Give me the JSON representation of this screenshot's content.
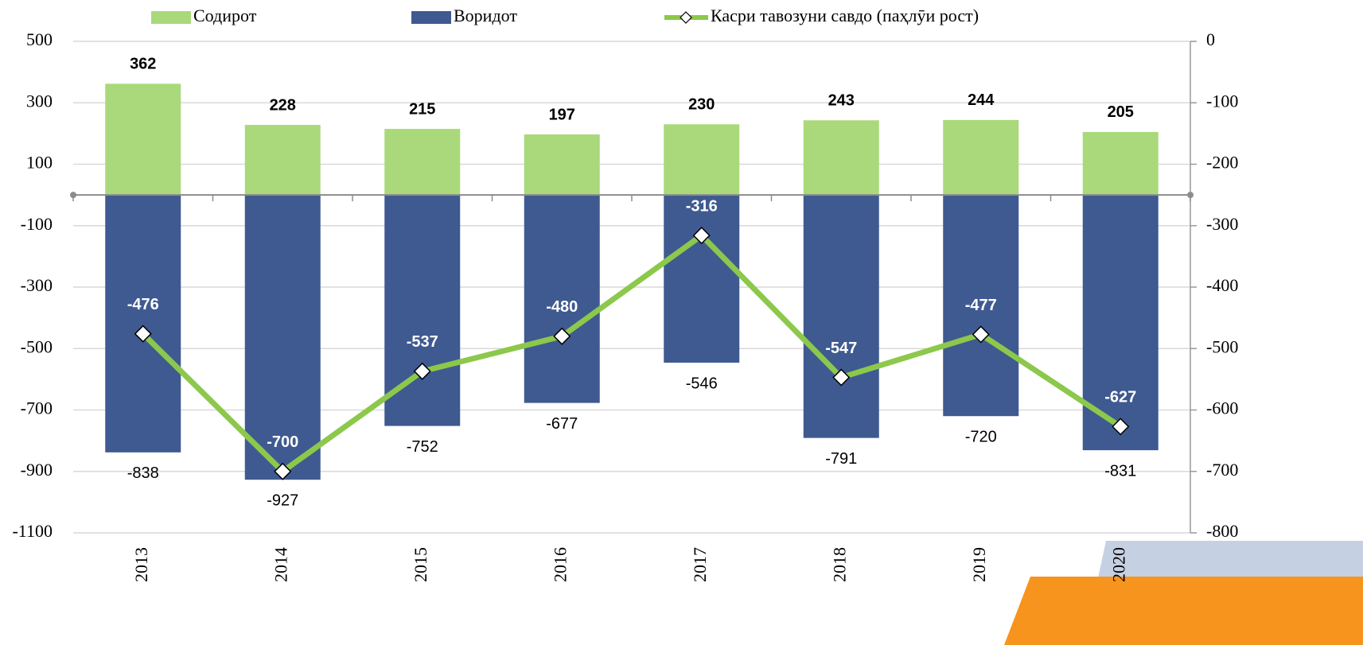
{
  "chart_data": {
    "type": "bar",
    "categories": [
      "2013",
      "2014",
      "2015",
      "2016",
      "2017",
      "2018",
      "2019",
      "2020"
    ],
    "series": [
      {
        "name": "Содирот",
        "color": "#a9d97a",
        "values": [
          362,
          228,
          215,
          197,
          230,
          243,
          244,
          205
        ]
      },
      {
        "name": "Воридот",
        "color": "#3f5a91",
        "values": [
          -838,
          -927,
          -752,
          -677,
          -546,
          -791,
          -720,
          -831
        ]
      },
      {
        "name": "Касри тавозуни савдо (паҳлӯи рост)",
        "color": "#8cc84b",
        "type": "line",
        "axis": "y2",
        "values": [
          -476,
          -700,
          -537,
          -480,
          -316,
          -547,
          -477,
          -627
        ]
      }
    ],
    "ylim": [
      -1100,
      500
    ],
    "yticks": [
      -1100,
      -900,
      -700,
      -500,
      -300,
      -100,
      100,
      300,
      500
    ],
    "y2lim": [
      -800,
      0
    ],
    "y2ticks": [
      -800,
      -700,
      -600,
      -500,
      -400,
      -300,
      -200,
      -100,
      0
    ],
    "grid": true
  }
}
